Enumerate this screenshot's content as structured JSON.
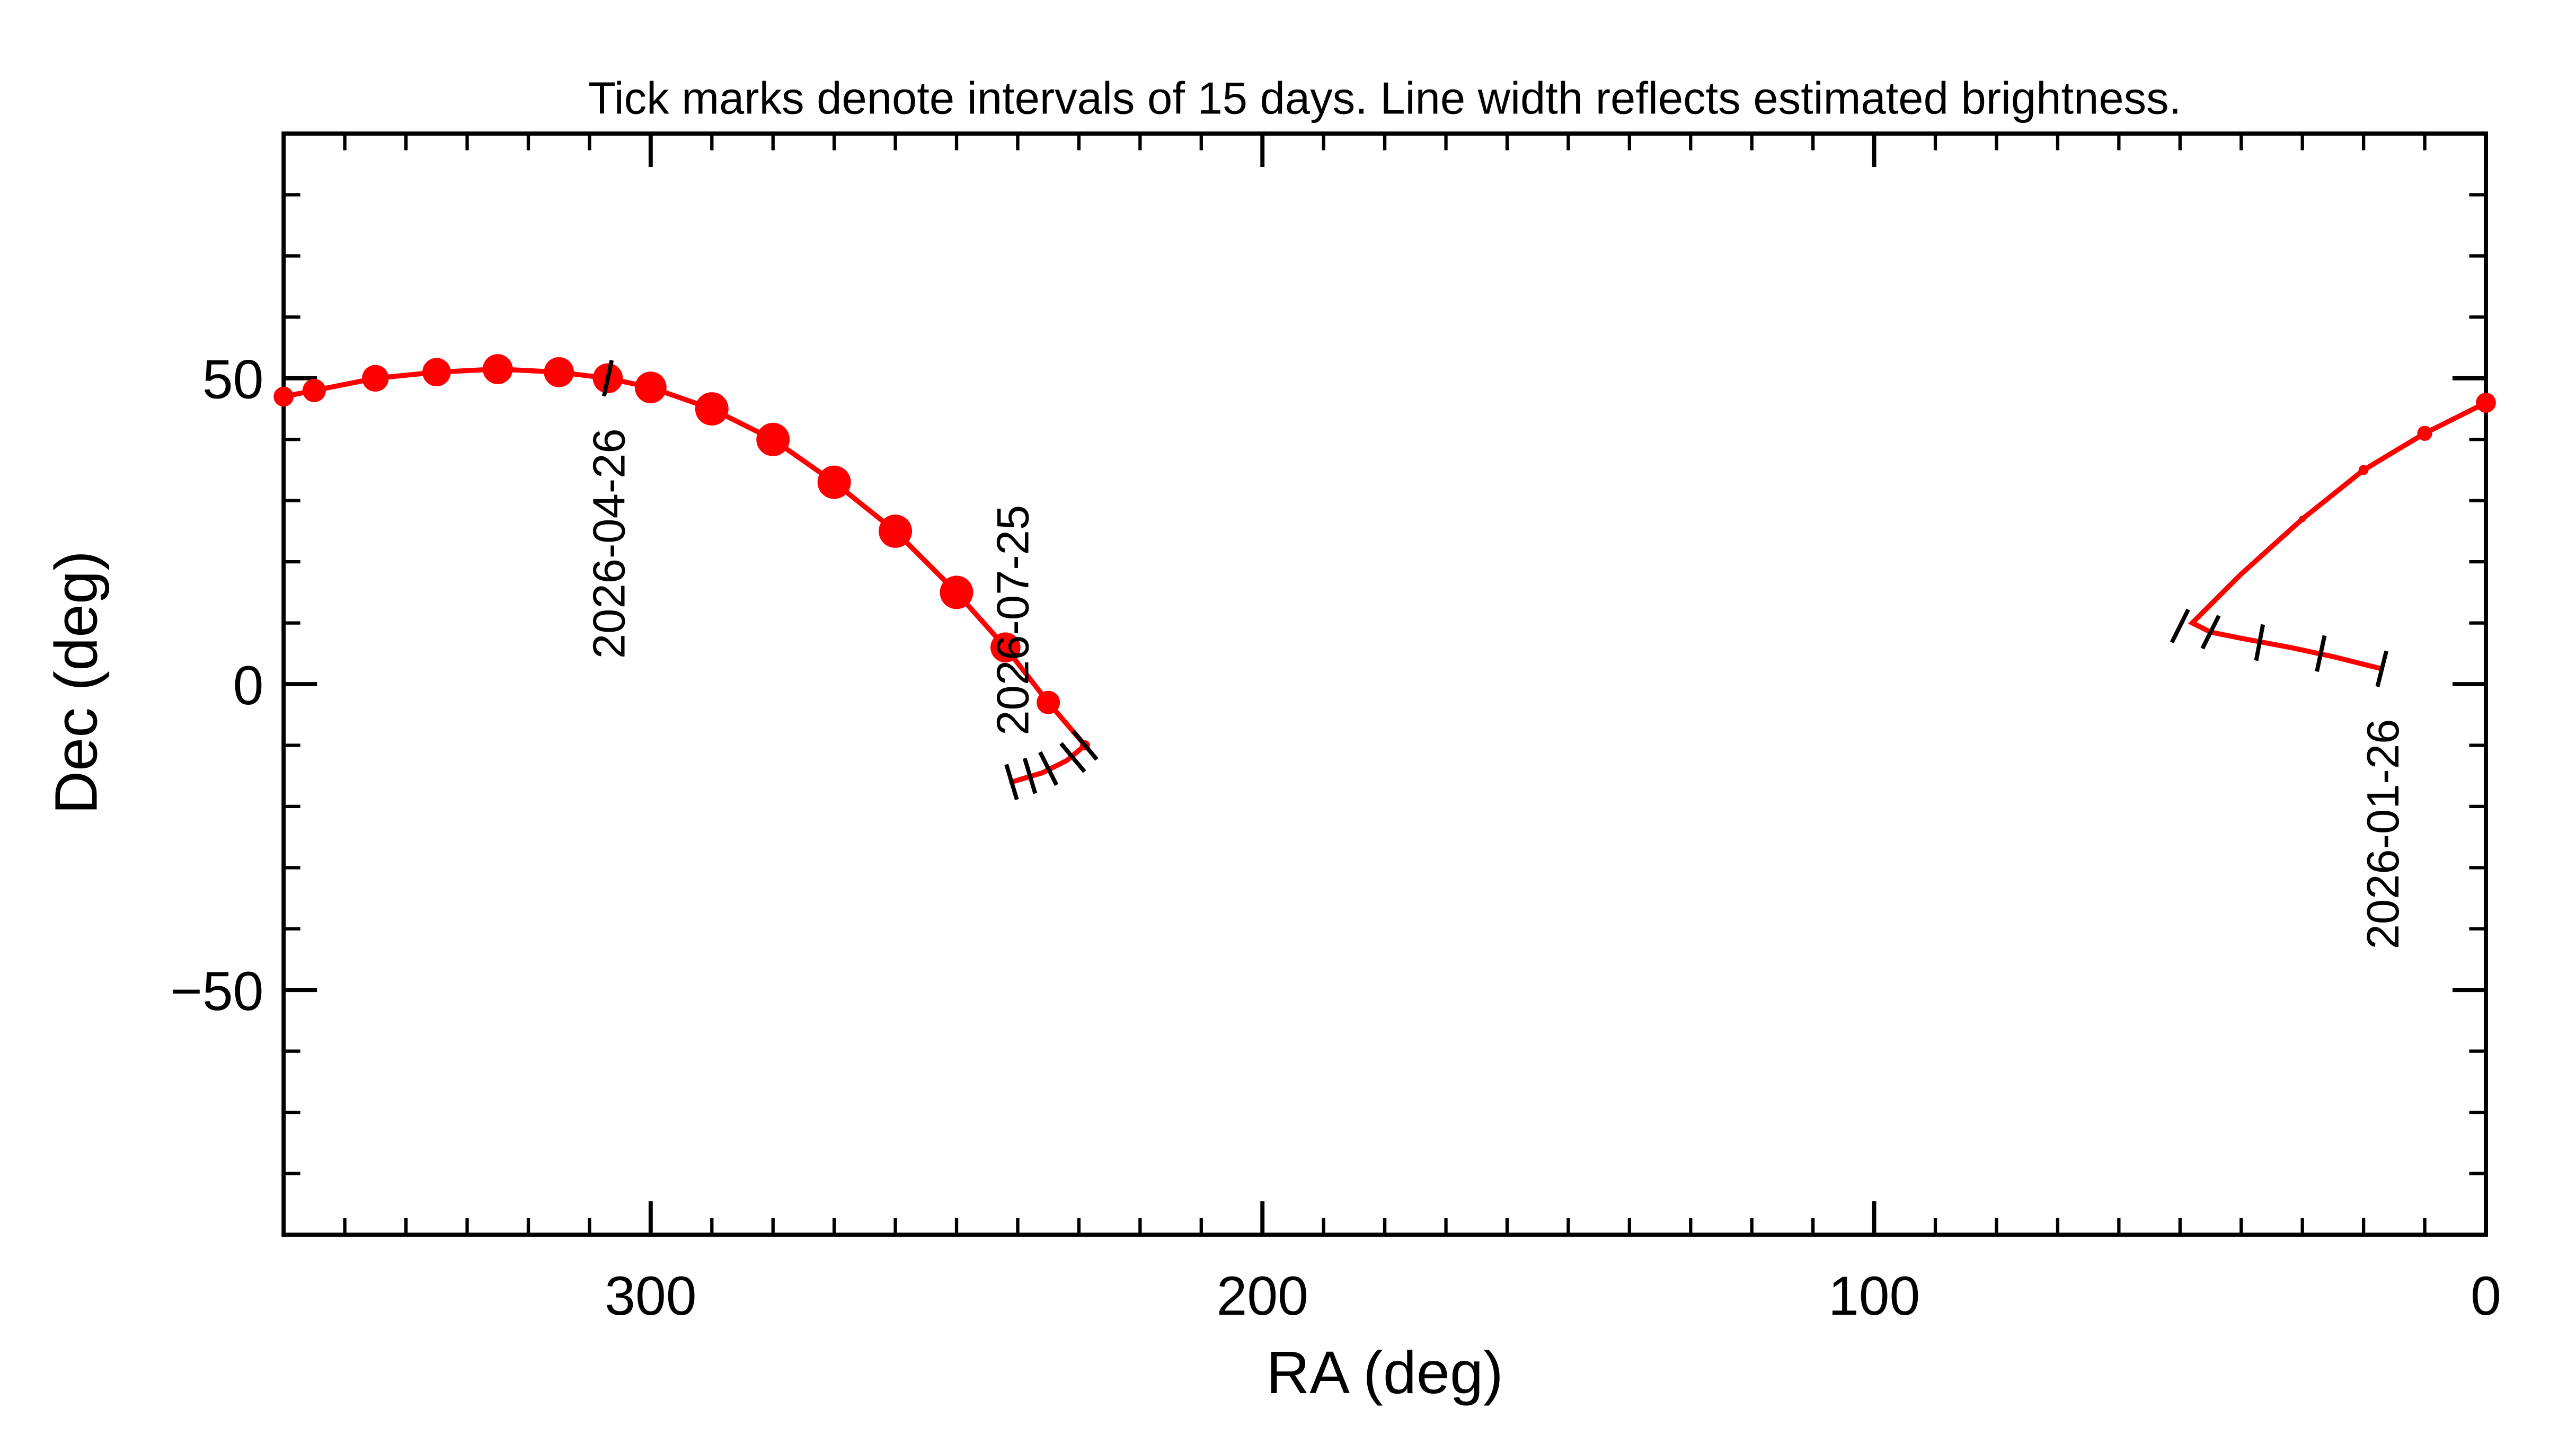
{
  "chart_data": {
    "type": "track",
    "title": "Tick marks denote intervals of 15 days.  Line width reflects estimated brightness.",
    "x_label": "RA (deg)",
    "y_label": "Dec (deg)",
    "xlim": [
      360,
      0
    ],
    "ylim": [
      -90,
      90
    ],
    "xticks": [
      300,
      200,
      100,
      0
    ],
    "yticks": [
      50,
      0,
      {
        "value": -50,
        "label": "−50"
      }
    ],
    "minor_tick_step": 10,
    "color": "#ff0000",
    "series": [
      {
        "x": [
          17,
          25,
          32,
          40,
          45,
          48,
          40,
          30,
          20,
          10,
          0,
          null,
          360,
          355,
          345,
          335,
          325,
          315,
          307,
          300,
          290,
          280,
          270,
          260,
          250,
          242,
          235,
          229,
          232,
          236,
          241
        ],
        "y": [
          2.5,
          4.5,
          6,
          7.5,
          8.5,
          10,
          18,
          27,
          35,
          41,
          46,
          null,
          47,
          48,
          50,
          51,
          51.5,
          51,
          50,
          48.5,
          45,
          40,
          33,
          25,
          15,
          6,
          -3,
          -10,
          -12.5,
          -14.5,
          -16
        ],
        "widths": [
          2,
          2,
          2,
          2,
          2,
          3,
          3,
          4,
          6,
          9,
          12,
          null,
          12,
          14,
          16,
          17,
          18,
          18,
          18,
          19,
          20,
          20,
          20,
          20,
          20,
          18,
          14,
          6,
          3,
          3,
          3
        ]
      }
    ],
    "interval_ticks": {
      "x": [
        17,
        27,
        37,
        45,
        50,
        307,
        229,
        231,
        235,
        238,
        241
      ],
      "y": [
        2.5,
        5,
        6.8,
        8.5,
        9.5,
        50,
        -10,
        -12,
        -13.8,
        -15,
        -16
      ]
    },
    "date_labels": [
      {
        "text": "2026-01-26",
        "x": 17,
        "y": 2.5
      },
      {
        "text": "2026-04-26",
        "x": 307,
        "y": 50
      },
      {
        "text": "2026-07-25",
        "x": 241,
        "y": -16
      }
    ]
  }
}
